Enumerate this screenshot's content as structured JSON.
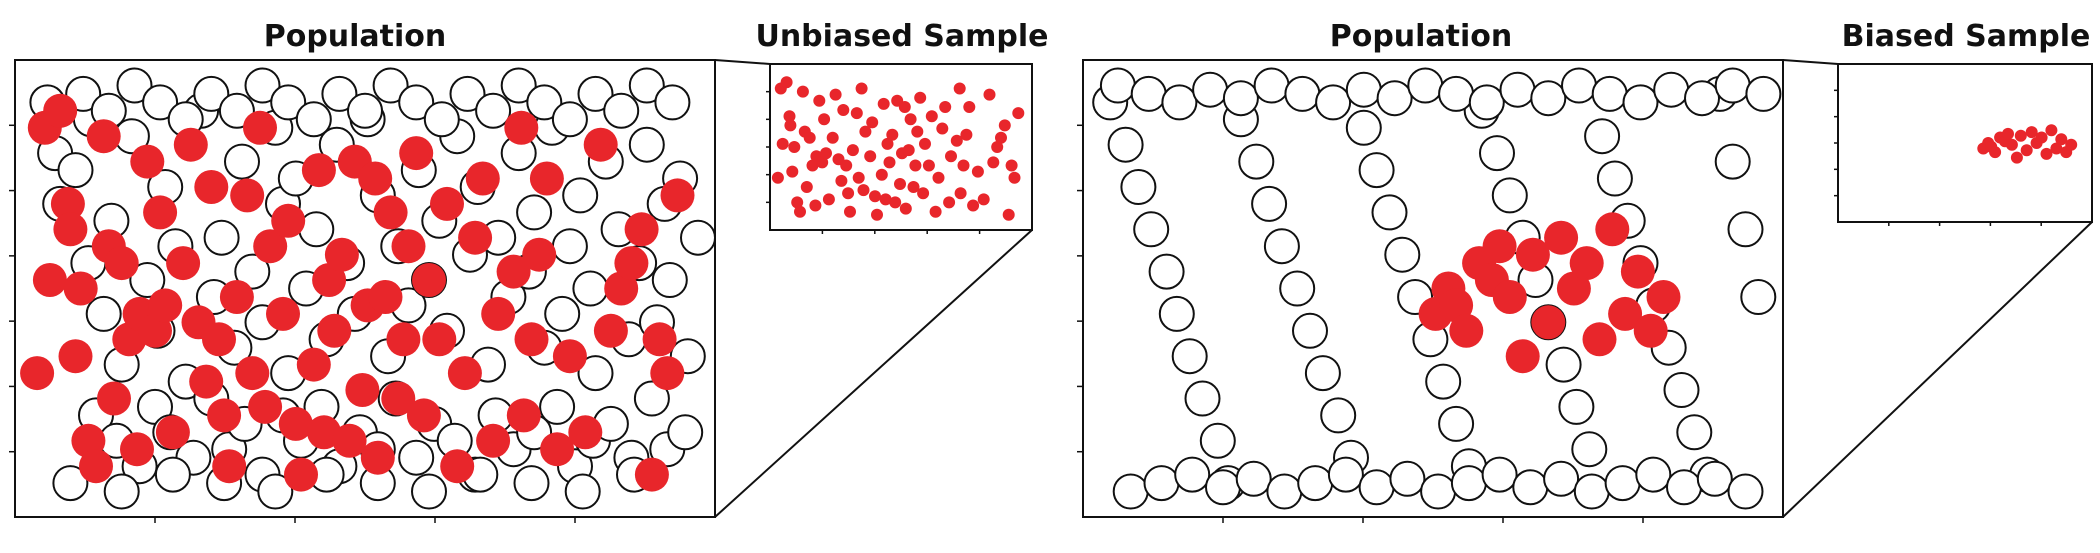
{
  "left_title": "Population",
  "left_sample_title": "Unbiased Sample",
  "right_title": "Population",
  "right_sample_title": "Biased Sample",
  "colors": {
    "sampled": "#e8262b",
    "unsampled_fill": "#ffffff",
    "outline": "#111111",
    "background": "#ffffff"
  },
  "chart_data": [
    {
      "type": "scatter",
      "title": "Population",
      "series": [
        {
          "name": "",
          "role": "population-unsampled",
          "color": "#ffffff",
          "x": [
            12,
            18,
            22,
            34,
            44,
            46,
            56,
            62,
            70,
            78,
            90,
            98,
            104,
            112,
            120,
            132,
            142,
            148,
            158,
            164,
            172,
            180,
            190,
            196,
            200,
            206,
            214,
            222,
            230,
            238,
            246,
            252,
            262,
            270,
            278,
            286,
            294,
            302,
            310,
            318,
            324,
            332,
            342,
            348,
            356,
            364,
            372,
            380,
            388,
            392,
            400,
            406,
            414,
            420,
            428,
            436,
            440,
            448,
            458,
            466,
            474,
            480,
            488,
            494,
            498,
            506,
            512,
            520,
            50,
            66,
            84,
            96,
            108,
            126,
            140,
            154,
            166,
            180,
            196,
            210,
            226,
            240,
            256,
            270,
            284,
            300,
            314,
            330,
            346,
            362,
            376,
            392,
            410,
            424,
            438,
            452,
            468,
            484,
            496,
            510,
            40,
            60,
            80,
            100,
            120,
            140,
            160,
            180,
            200,
            220,
            240,
            260,
            280,
            300,
            320,
            340,
            360,
            380,
            400,
            420,
            440,
            460,
            480,
            500,
            30,
            70,
            110,
            150,
            190,
            230,
            270,
            310,
            350,
            390,
            430,
            470
          ],
          "y": [
            6,
            18,
            30,
            22,
            44,
            10,
            56,
            34,
            68,
            14,
            48,
            60,
            26,
            40,
            72,
            8,
            52,
            38,
            64,
            20,
            46,
            58,
            12,
            30,
            70,
            24,
            50,
            36,
            62,
            16,
            44,
            56,
            10,
            28,
            66,
            40,
            54,
            22,
            48,
            34,
            60,
            14,
            42,
            26,
            68,
            38,
            52,
            18,
            46,
            32,
            64,
            12,
            56,
            40,
            28,
            50,
            70,
            20,
            36,
            62,
            44,
            16,
            58,
            30,
            48,
            24,
            66,
            38,
            80,
            86,
            92,
            78,
            84,
            90,
            76,
            88,
            82,
            94,
            80,
            86,
            78,
            92,
            84,
            88,
            76,
            90,
            82,
            86,
            94,
            80,
            88,
            84,
            78,
            92,
            86,
            82,
            90,
            76,
            88,
            84,
            4,
            8,
            2,
            6,
            10,
            4,
            8,
            2,
            6,
            10,
            4,
            8,
            2,
            6,
            10,
            4,
            8,
            2,
            6,
            10,
            4,
            8,
            2,
            6,
            96,
            98,
            94,
            96,
            98,
            94,
            96,
            98,
            94,
            96,
            98,
            94
          ]
        },
        {
          "name": "",
          "role": "population-sampled",
          "color": "#e8262b",
          "x": [
            4,
            10,
            14,
            22,
            28,
            30,
            34,
            38,
            44,
            50,
            56,
            60,
            64,
            70,
            76,
            82,
            84,
            90,
            96,
            100,
            104,
            110,
            118,
            124,
            130,
            136,
            140,
            146,
            150,
            154,
            160,
            168,
            172,
            178,
            182,
            186,
            196,
            200,
            206,
            210,
            220,
            224,
            228,
            232,
            236,
            242,
            248,
            252,
            258,
            262,
            268,
            270,
            276,
            280,
            286,
            290,
            294,
            300,
            306,
            310,
            318,
            324,
            332,
            338,
            346,
            352,
            360,
            364,
            376,
            382,
            384,
            390,
            396,
            402,
            410,
            420,
            432,
            444,
            452,
            460,
            468,
            476,
            484,
            490,
            496,
            504
          ],
          "y": [
            70,
            12,
            48,
            8,
            30,
            36,
            66,
            50,
            86,
            92,
            14,
            40,
            76,
            44,
            62,
            88,
            56,
            20,
            60,
            32,
            54,
            84,
            44,
            16,
            58,
            72,
            26,
            62,
            80,
            92,
            52,
            28,
            70,
            12,
            78,
            40,
            56,
            34,
            82,
            94,
            68,
            22,
            84,
            48,
            60,
            42,
            86,
            20,
            74,
            54,
            24,
            90,
            52,
            32,
            76,
            62,
            40,
            18,
            80,
            48,
            62,
            30,
            92,
            70,
            38,
            24,
            86,
            56,
            46,
            12,
            80,
            62,
            42,
            24,
            88,
            66,
            84,
            16,
            60,
            50,
            44,
            36,
            94,
            62,
            70,
            28
          ]
        }
      ]
    },
    {
      "type": "scatter",
      "title": "Unbiased Sample",
      "series": [
        {
          "name": "",
          "color": "#e8262b",
          "x": [
            4,
            10,
            14,
            22,
            28,
            30,
            34,
            38,
            44,
            50,
            56,
            60,
            64,
            70,
            76,
            82,
            84,
            90,
            96,
            100,
            104,
            110,
            118,
            124,
            130,
            136,
            140,
            146,
            150,
            154,
            160,
            168,
            172,
            178,
            182,
            186,
            196,
            200,
            206,
            210,
            220,
            224,
            228,
            232,
            236,
            242,
            248,
            252,
            258,
            262,
            268,
            270,
            276,
            280,
            286,
            290,
            294,
            300,
            306,
            310,
            318,
            324,
            332,
            338,
            346,
            352,
            360,
            364,
            376,
            382,
            384,
            390,
            396,
            402,
            410,
            420,
            432,
            444,
            452,
            460,
            468,
            476,
            484,
            490,
            496,
            504
          ],
          "y": [
            70,
            12,
            48,
            8,
            30,
            36,
            66,
            50,
            86,
            92,
            14,
            40,
            76,
            44,
            62,
            88,
            56,
            20,
            60,
            32,
            54,
            84,
            44,
            16,
            58,
            72,
            26,
            62,
            80,
            92,
            52,
            28,
            70,
            12,
            78,
            40,
            56,
            34,
            82,
            94,
            68,
            22,
            84,
            48,
            60,
            42,
            86,
            20,
            74,
            54,
            24,
            90,
            52,
            32,
            76,
            62,
            40,
            18,
            80,
            48,
            62,
            30,
            92,
            70,
            38,
            24,
            86,
            56,
            46,
            12,
            80,
            62,
            42,
            24,
            88,
            66,
            84,
            16,
            60,
            50,
            44,
            36,
            94,
            62,
            70,
            28
          ]
        }
      ]
    },
    {
      "type": "scatter",
      "title": "Population",
      "series": [
        {
          "name": "",
          "role": "population-unsampled",
          "color": "#ffffff",
          "x": [
            8,
            20,
            30,
            40,
            52,
            60,
            70,
            80,
            92,
            100,
            110,
            122,
            132,
            142,
            154,
            164,
            174,
            186,
            196,
            206,
            216,
            226,
            236,
            246,
            258,
            268,
            278,
            288,
            298,
            310,
            320,
            330,
            340,
            350,
            362,
            372,
            382,
            392,
            402,
            412,
            422,
            432,
            444,
            454,
            464,
            474,
            484,
            494,
            504,
            514,
            14,
            38,
            62,
            86,
            110,
            134,
            158,
            182,
            206,
            230,
            254,
            278,
            302,
            326,
            350,
            374,
            398,
            422,
            446,
            470,
            494,
            518,
            24,
            48,
            72,
            96,
            120,
            144,
            168,
            192,
            216,
            240,
            264,
            288,
            312,
            336,
            360,
            384,
            408,
            432,
            456,
            480,
            504
          ],
          "y": [
            6,
            16,
            26,
            36,
            46,
            56,
            66,
            76,
            86,
            96,
            10,
            20,
            30,
            40,
            50,
            60,
            70,
            80,
            90,
            12,
            22,
            32,
            42,
            52,
            62,
            72,
            82,
            92,
            8,
            18,
            28,
            38,
            48,
            58,
            68,
            78,
            88,
            14,
            24,
            34,
            44,
            54,
            64,
            74,
            84,
            94,
            4,
            20,
            36,
            52,
            2,
            4,
            6,
            3,
            5,
            2,
            4,
            6,
            3,
            5,
            2,
            4,
            6,
            3,
            5,
            2,
            4,
            6,
            3,
            5,
            2,
            4,
            98,
            96,
            94,
            97,
            95,
            98,
            96,
            94,
            97,
            95,
            98,
            96,
            94,
            97,
            95,
            98,
            96,
            94,
            97,
            95,
            98
          ]
        },
        {
          "name": "",
          "role": "population-sampled",
          "color": "#e8262b",
          "x": [
            262,
            272,
            278,
            286,
            296,
            306,
            312,
            320,
            330,
            338,
            350,
            360,
            370,
            380,
            390,
            400,
            410,
            420,
            430,
            440
          ],
          "y": [
            56,
            50,
            54,
            60,
            44,
            48,
            40,
            52,
            66,
            42,
            58,
            38,
            50,
            44,
            62,
            36,
            56,
            46,
            60,
            52
          ]
        }
      ]
    },
    {
      "type": "scatter",
      "title": "Biased Sample",
      "series": [
        {
          "name": "",
          "color": "#e8262b",
          "x": [
            262,
            272,
            278,
            286,
            296,
            306,
            312,
            320,
            330,
            338,
            350,
            360,
            370,
            380,
            390,
            400,
            410,
            420,
            430,
            440
          ],
          "y": [
            56,
            50,
            54,
            60,
            44,
            48,
            40,
            52,
            66,
            42,
            58,
            38,
            50,
            44,
            62,
            36,
            56,
            46,
            60,
            52
          ]
        }
      ]
    }
  ]
}
